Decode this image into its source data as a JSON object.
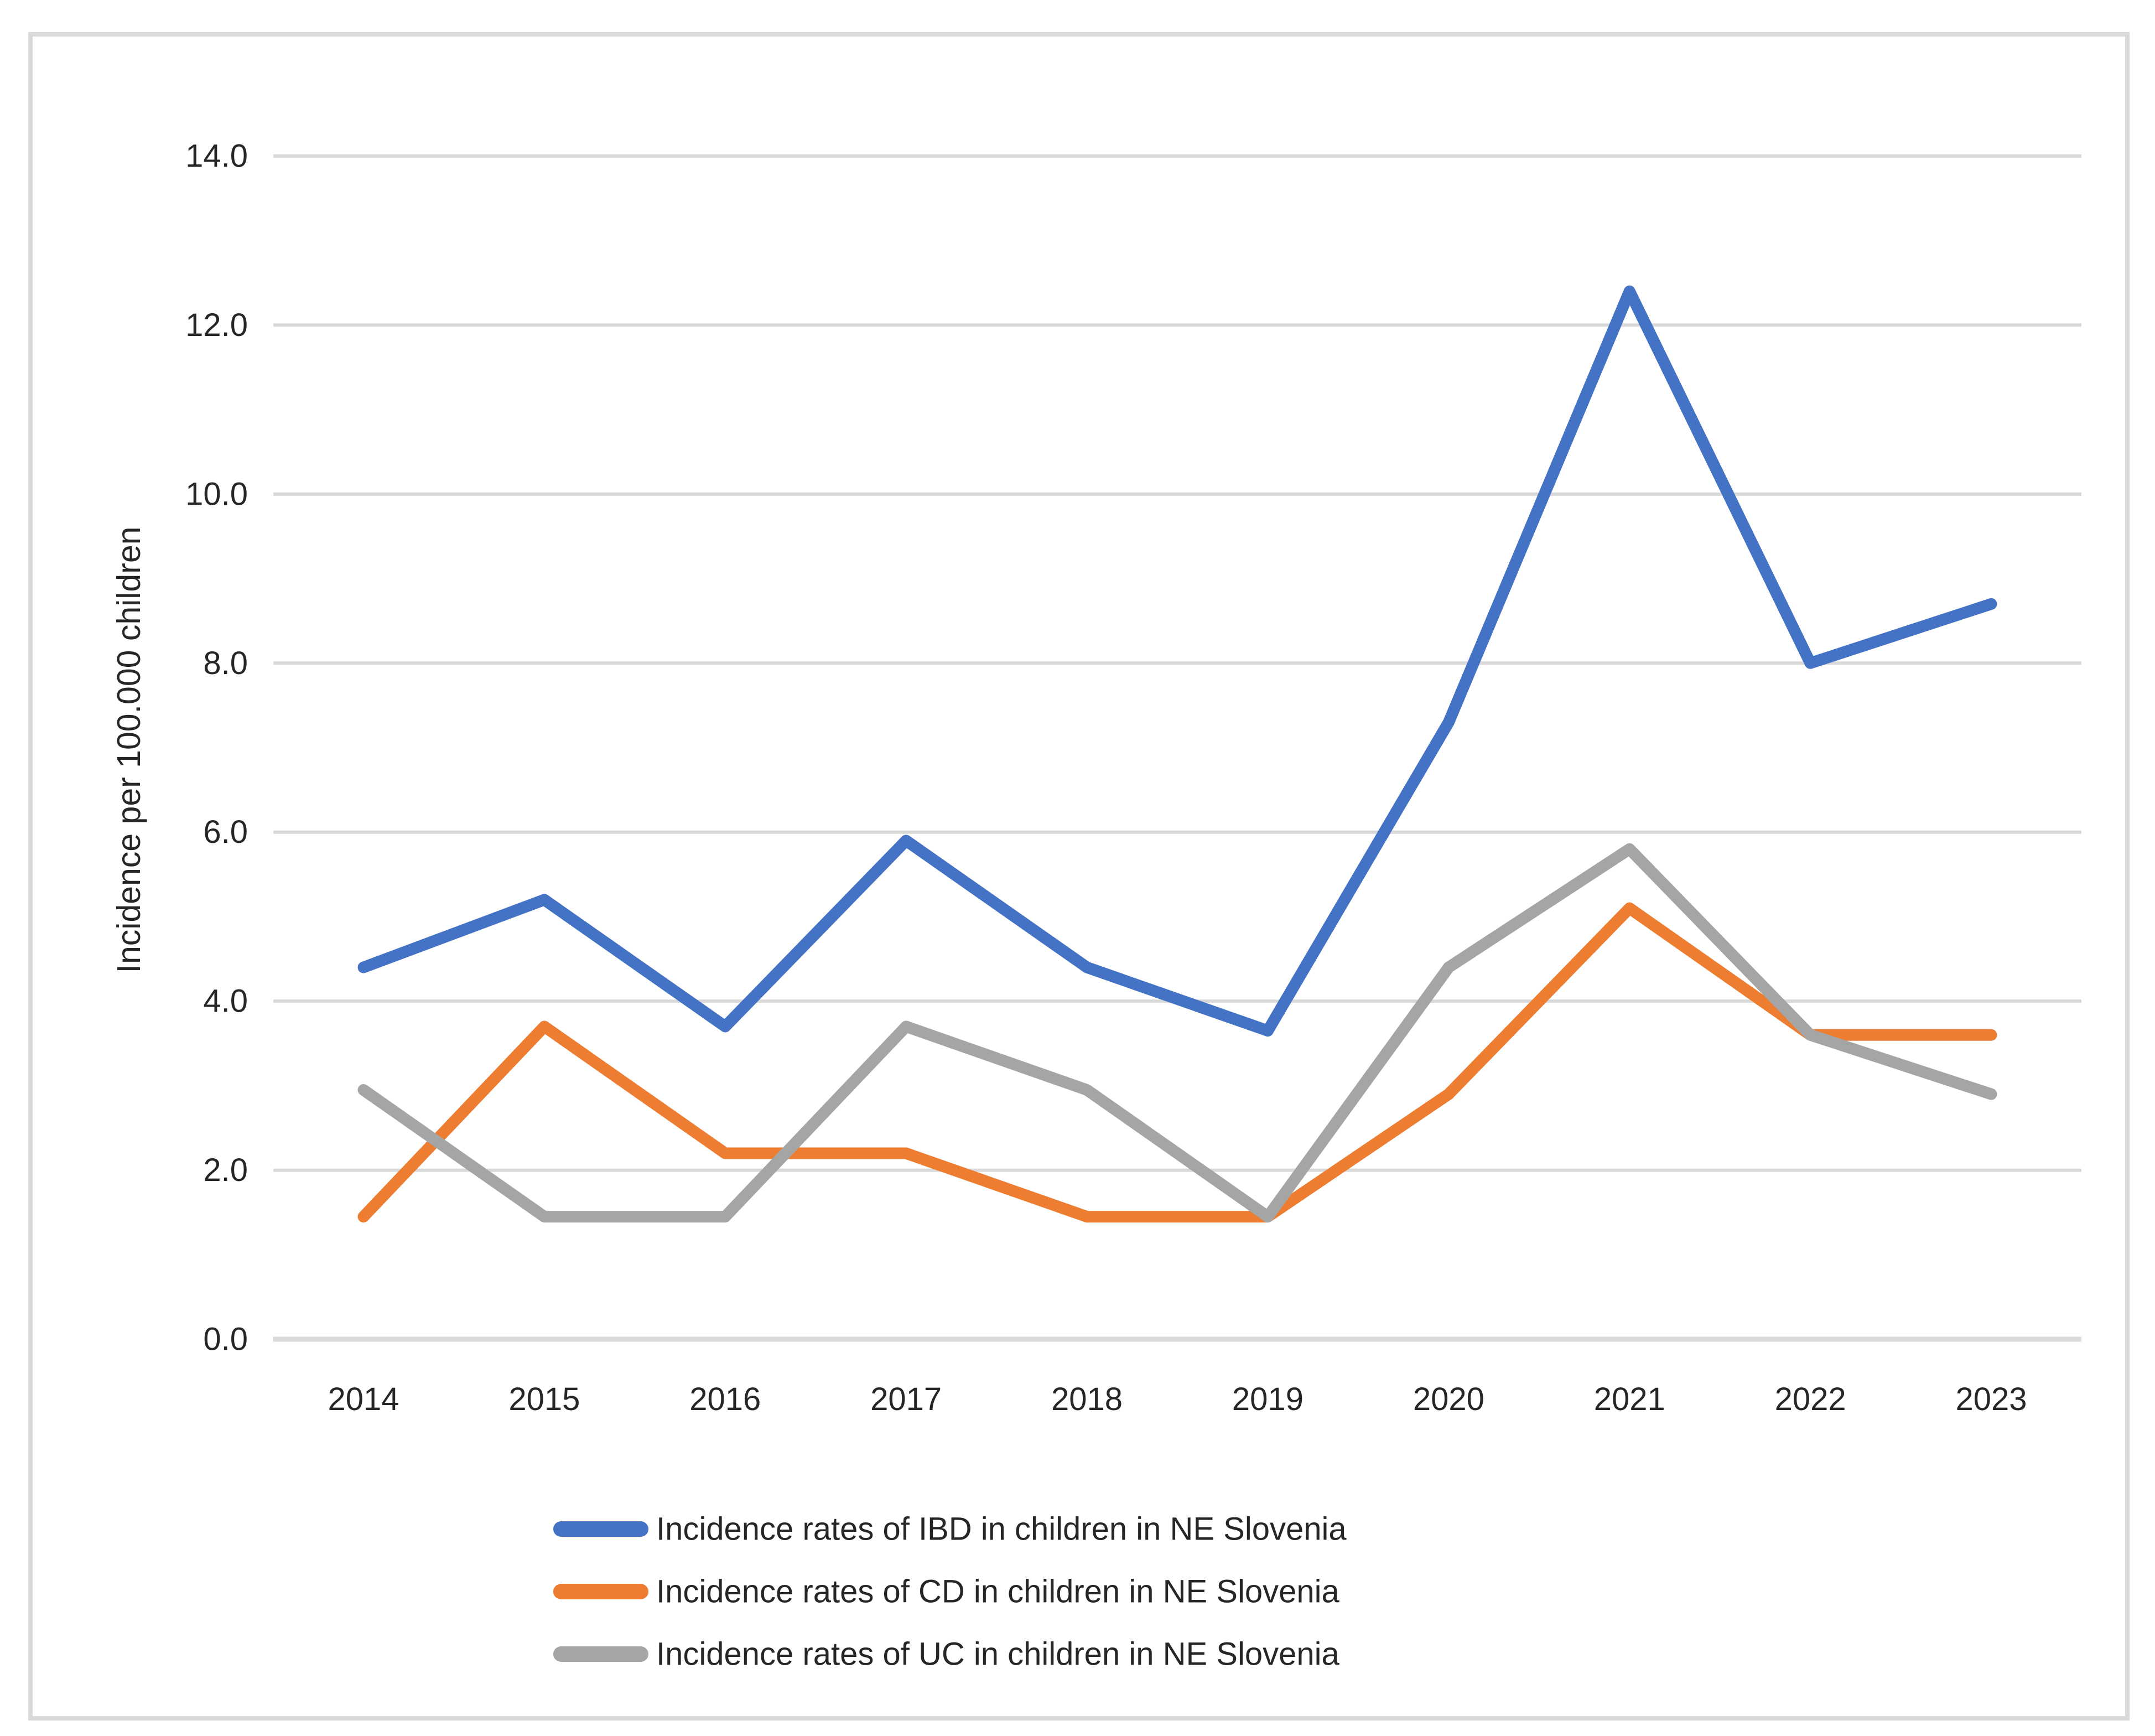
{
  "figure": {
    "background": "#FFFFFF",
    "border_color": "#D9D9D9"
  },
  "axes": {
    "gridline_color": "#D9D9D9",
    "axis_line_color": "#D9D9D9",
    "tick_label_color": "#262626"
  },
  "chart_data": {
    "type": "line",
    "title": "",
    "xlabel": "",
    "ylabel": "Incidence per 100.000 children",
    "x_categories": [
      "2014",
      "2015",
      "2016",
      "2017",
      "2018",
      "2019",
      "2020",
      "2021",
      "2022",
      "2023"
    ],
    "series": [
      {
        "name": "Incidence rates of IBD in children in NE Slovenia",
        "color": "#4472C4",
        "values": [
          4.4,
          5.2,
          3.7,
          5.9,
          4.4,
          3.65,
          7.3,
          12.4,
          8.0,
          8.7
        ]
      },
      {
        "name": "Incidence rates of CD in children in NE Slovenia",
        "color": "#ED7D31",
        "values": [
          1.45,
          3.7,
          2.2,
          2.2,
          1.45,
          1.45,
          2.9,
          5.1,
          3.6,
          3.6
        ]
      },
      {
        "name": "Incidence rates of UC in children in NE Slovenia",
        "color": "#A5A5A5",
        "values": [
          2.95,
          1.45,
          1.45,
          3.7,
          2.95,
          1.45,
          4.4,
          5.8,
          3.6,
          2.9
        ]
      }
    ],
    "ylim": [
      0,
      14
    ],
    "ytick_step": 2,
    "ytick_labels": [
      "0.0",
      "2.0",
      "4.0",
      "6.0",
      "8.0",
      "10.0",
      "12.0",
      "14.0"
    ],
    "grid": true,
    "legend_position": "bottom-left"
  }
}
